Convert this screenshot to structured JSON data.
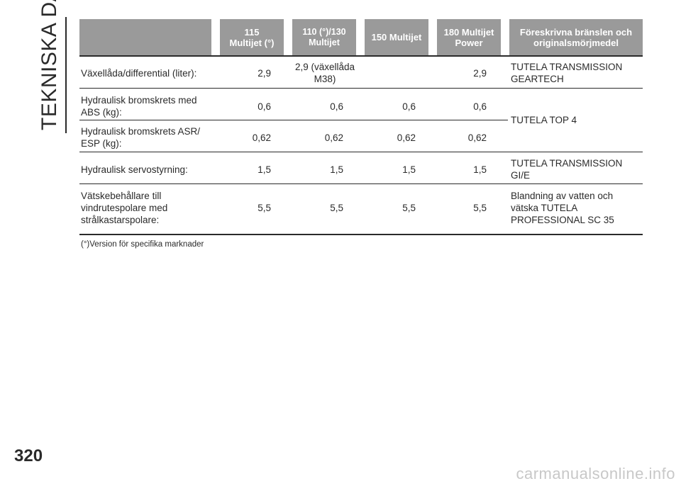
{
  "section_title": "TEKNISKA DATA",
  "page_number": "320",
  "watermark": "carmanualsonline.info",
  "header": {
    "col1": "115 Multijet (°)",
    "col2": "110 (°)/130 Multijet",
    "col3": "150 Multijet",
    "col4": "180 Multijet Power",
    "col5": "Föreskrivna bränslen och originalsmörjmedel"
  },
  "rows": [
    {
      "label": "Växellåda/differential (liter):",
      "v1": "2,9",
      "v2": "2,9 (växellåda M38)",
      "v3": "",
      "v4": "2,9",
      "fluid": "TUTELA TRANSMISSION GEARTECH"
    },
    {
      "label": "Hydraulisk bromskrets med ABS (kg):",
      "v1": "0,6",
      "v2": "0,6",
      "v3": "0,6",
      "v4": "0,6"
    },
    {
      "label": "Hydraulisk bromskrets ASR/ ESP (kg):",
      "v1": "0,62",
      "v2": "0,62",
      "v3": "0,62",
      "v4": "0,62"
    },
    {
      "label": "Hydraulisk servostyrning:",
      "v1": "1,5",
      "v2": "1,5",
      "v3": "1,5",
      "v4": "1,5",
      "fluid": "TUTELA TRANSMISSION GI/E"
    },
    {
      "label": "Vätskebehållare till vindrutespolare med strålkastarspolare:",
      "v1": "5,5",
      "v2": "5,5",
      "v3": "5,5",
      "v4": "5,5",
      "fluid": "Blandning av vatten och vätska TUTELA PROFESSIONAL SC 35"
    }
  ],
  "merged_fluid": "TUTELA TOP 4",
  "footnote": "(°)Version för specifika marknader"
}
